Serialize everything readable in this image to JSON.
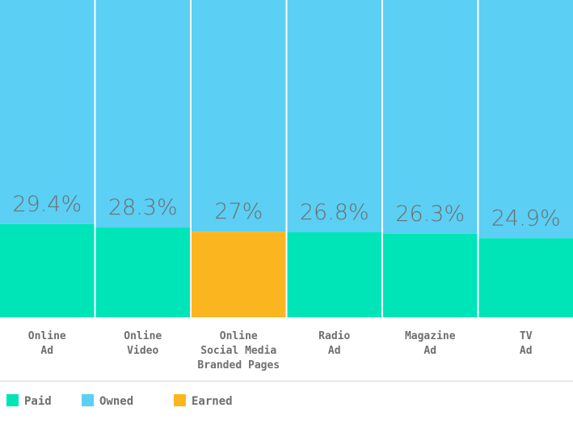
{
  "chart_data": {
    "type": "bar",
    "stacked": true,
    "categories": [
      [
        "Online",
        "Ad"
      ],
      [
        "Online",
        "Video"
      ],
      [
        "Online",
        "Social Media",
        "Branded Pages"
      ],
      [
        "Radio",
        "Ad"
      ],
      [
        "Magazine",
        "Ad"
      ],
      [
        "TV",
        "Ad"
      ]
    ],
    "values": [
      29.4,
      28.3,
      27,
      26.8,
      26.3,
      24.9
    ],
    "value_labels": [
      "29.4%",
      "28.3%",
      "27%",
      "26.8%",
      "26.3%",
      "24.9%"
    ],
    "segment_type": [
      "Paid",
      "Paid",
      "Earned",
      "Paid",
      "Paid",
      "Paid"
    ],
    "total": 100,
    "ylim": [
      0,
      100
    ],
    "grid": false,
    "legend": {
      "position": "bottom-left",
      "entries": [
        {
          "name": "Paid",
          "color": "#00e5b8"
        },
        {
          "name": "Owned",
          "color": "#5bcff4"
        },
        {
          "name": "Earned",
          "color": "#fbb61f"
        }
      ]
    },
    "colors": {
      "Paid": "#00e5b8",
      "Owned": "#5bcff4",
      "Earned": "#fbb61f",
      "text": "#6e6e6e",
      "divider": "#d0d0d0"
    }
  }
}
